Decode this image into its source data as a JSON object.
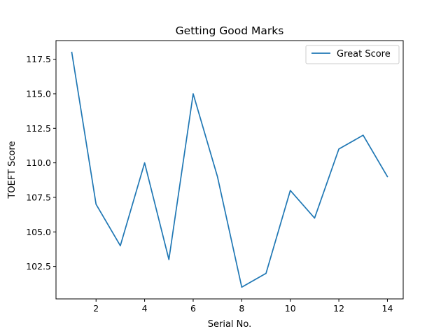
{
  "chart_data": {
    "type": "line",
    "title": "Getting Good Marks",
    "xlabel": "Serial No.",
    "ylabel": "TOEFT Score",
    "x": [
      1,
      2,
      3,
      4,
      5,
      6,
      7,
      8,
      9,
      10,
      11,
      12,
      13,
      14
    ],
    "series": [
      {
        "name": "Great Score",
        "color": "#1f77b4",
        "values": [
          118,
          107,
          104,
          110,
          103,
          115,
          109,
          101,
          102,
          108,
          106,
          111,
          112,
          109
        ]
      }
    ],
    "xlim": [
      0.35,
      14.65
    ],
    "ylim": [
      100.15,
      118.85
    ],
    "xticks": [
      2,
      4,
      6,
      8,
      10,
      12,
      14
    ],
    "xtick_labels": [
      "2",
      "4",
      "6",
      "8",
      "10",
      "12",
      "14"
    ],
    "yticks": [
      102.5,
      105.0,
      107.5,
      110.0,
      112.5,
      115.0,
      117.5
    ],
    "ytick_labels": [
      "102.5",
      "105.0",
      "107.5",
      "110.0",
      "112.5",
      "115.0",
      "117.5"
    ],
    "grid": false,
    "legend_position": "top-right"
  }
}
